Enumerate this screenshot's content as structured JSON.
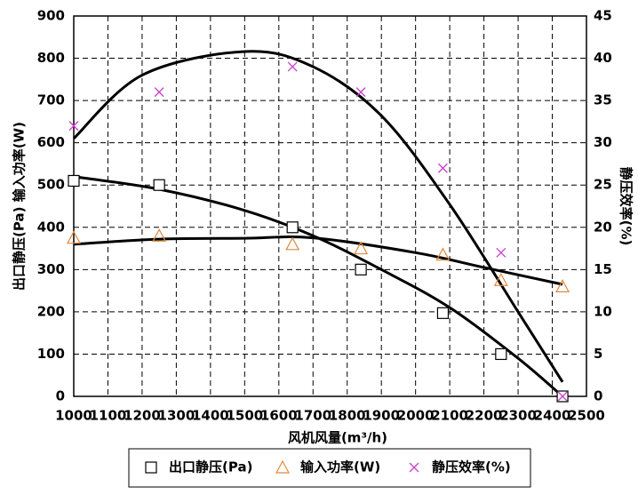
{
  "chart_data": {
    "type": "scatter",
    "x_label": "风机风量(m³/h)",
    "y_label": "出口静压(Pa) 输入功率(W)",
    "y2_label": "静压效率(%)",
    "x": [
      1000,
      1250,
      1640,
      1840,
      2080,
      2250,
      2430
    ],
    "xlim": [
      1000,
      2500
    ],
    "xticks": [
      1000,
      1100,
      1200,
      1300,
      1400,
      1500,
      1600,
      1700,
      1800,
      1900,
      2000,
      2100,
      2200,
      2300,
      2400,
      2500
    ],
    "ylim": [
      0,
      900
    ],
    "yticks": [
      0,
      100,
      200,
      300,
      400,
      500,
      600,
      700,
      800,
      900
    ],
    "y2lim": [
      0,
      45
    ],
    "y2ticks": [
      0,
      5,
      10,
      15,
      20,
      25,
      30,
      35,
      40,
      45
    ],
    "grid": true,
    "series": [
      {
        "name": "出口静压(Pa)",
        "color": "#000000",
        "marker": "square",
        "values": [
          510,
          500,
          400,
          300,
          197,
          100,
          0
        ],
        "fit": {
          "x": [
            1000,
            1250,
            1500,
            1700,
            1900,
            2100,
            2300,
            2430
          ],
          "values": [
            520,
            490,
            440,
            380,
            300,
            210,
            90,
            0
          ]
        }
      },
      {
        "name": "输入功率(W)",
        "color": "#e08a3c",
        "marker": "triangle",
        "values": [
          375,
          380,
          360,
          350,
          335,
          275,
          260
        ],
        "fit": {
          "x": [
            1000,
            1250,
            1500,
            1700,
            2000,
            2200,
            2430
          ],
          "values": [
            360,
            372,
            374,
            375,
            340,
            305,
            265
          ]
        }
      },
      {
        "name": "静压效率(%)",
        "color": "#cc44cc",
        "marker": "cross",
        "axis": "y2",
        "values": [
          32,
          36,
          39,
          36,
          27,
          17,
          0
        ],
        "fit": {
          "x": [
            1000,
            1200,
            1500,
            1700,
            1900,
            2100,
            2300,
            2430
          ],
          "values": [
            30.5,
            38,
            40.8,
            39,
            33.2,
            22.7,
            10,
            1.7
          ]
        }
      }
    ]
  }
}
